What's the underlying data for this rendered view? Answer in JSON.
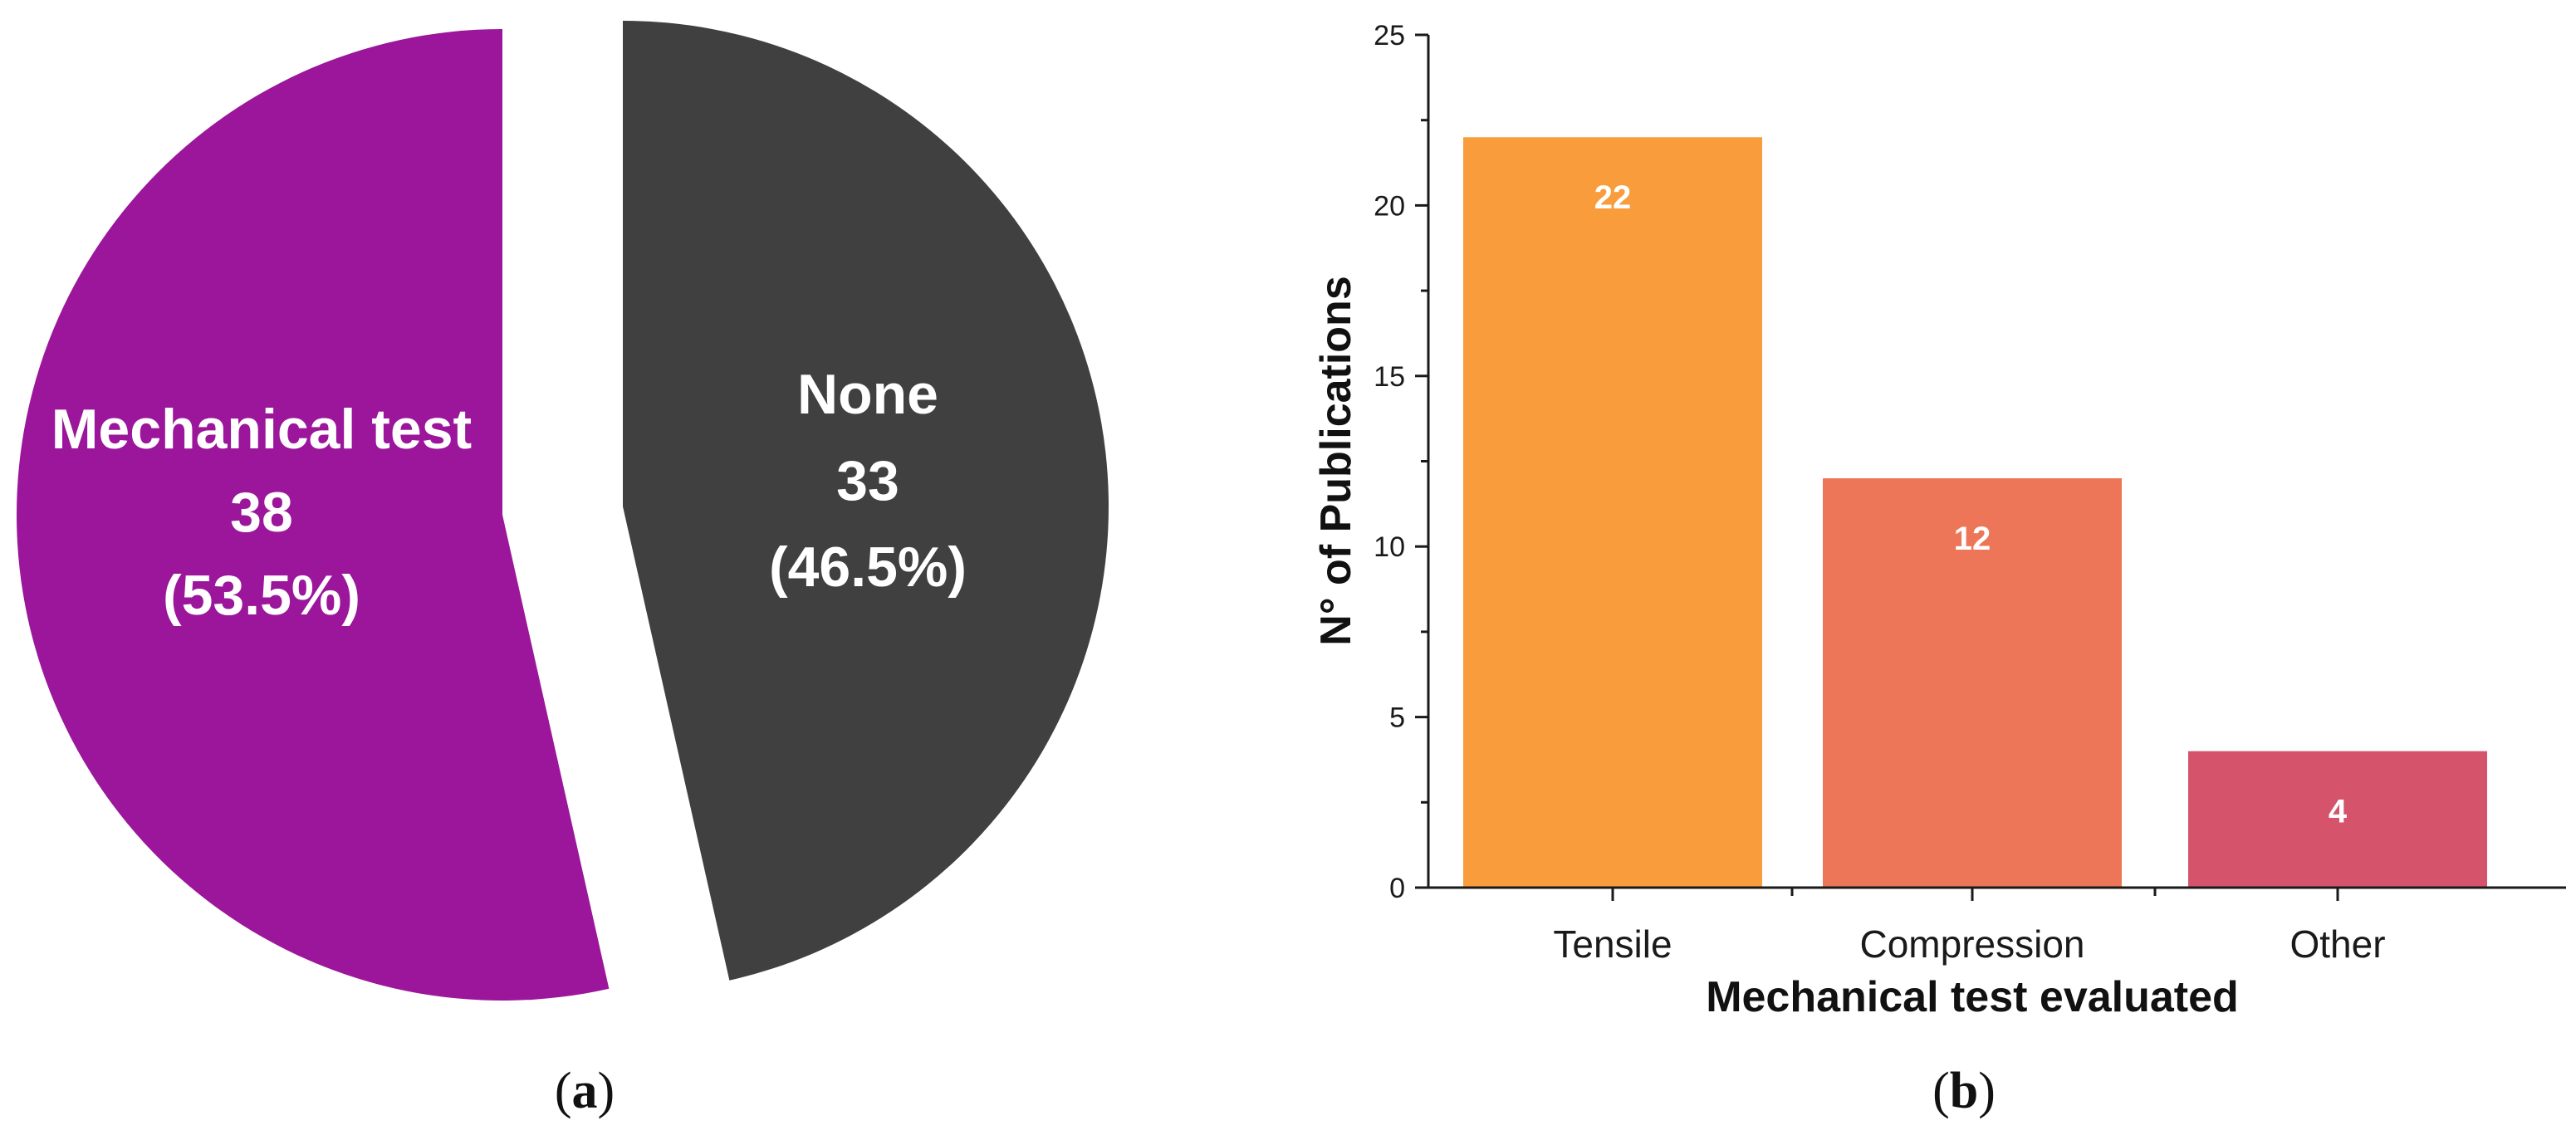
{
  "panels": {
    "a": {
      "open": "(",
      "letter": "a",
      "close": ")"
    },
    "b": {
      "open": "(",
      "letter": "b",
      "close": ")"
    }
  },
  "chart_data": [
    {
      "type": "pie",
      "slices": [
        {
          "label": "None",
          "value": 33,
          "percent_label": "(46.5%)",
          "color": "#404040"
        },
        {
          "label": "Mechanical test",
          "value": 38,
          "percent_label": "(53.5%)",
          "color": "#9b169b"
        }
      ],
      "exploded": true
    },
    {
      "type": "bar",
      "categories": [
        "Tensile",
        "Compression",
        "Other"
      ],
      "values": [
        22,
        12,
        4
      ],
      "colors": [
        "#f99d3c",
        "#ec7657",
        "#d5546b"
      ],
      "xlabel": "Mechanical test evaluated",
      "ylabel": "N° of Publications",
      "ylim": [
        0,
        25
      ],
      "yticks": [
        0,
        5,
        10,
        15,
        20,
        25
      ],
      "grid": false,
      "data_labels": true
    }
  ]
}
